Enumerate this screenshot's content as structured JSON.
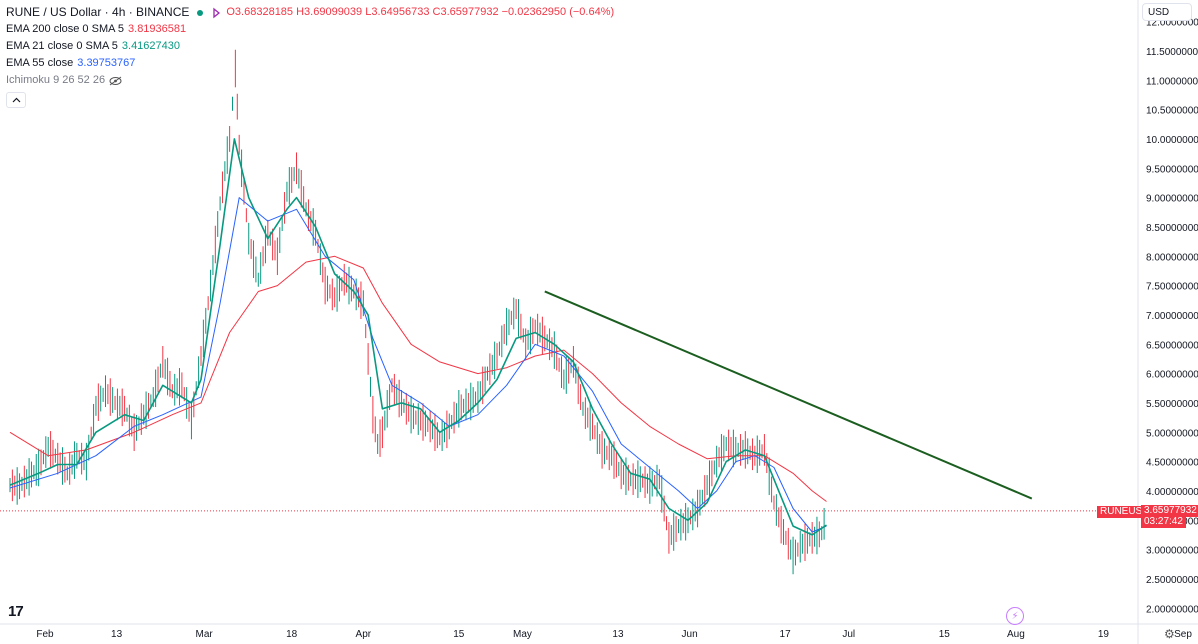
{
  "header": {
    "title": "RUNE / US Dollar · 4h · BINANCE",
    "ohlc": "O3.68328185 H3.69099039 L3.64956733 C3.65977932 −0.02362950 (−0.64%)",
    "indicators": [
      {
        "name": "EMA 200 close 0 SMA 5",
        "value": "3.81936581",
        "color": "#f23645"
      },
      {
        "name": "EMA 21 close 0 SMA 5",
        "value": "3.41627430",
        "color": "#089981"
      },
      {
        "name": "EMA 55 close",
        "value": "3.39753767",
        "color": "#2962ff"
      },
      {
        "name": "Ichimoku 9 26 52 26",
        "value": "",
        "color": "#787b86"
      }
    ]
  },
  "currency_select": "USD",
  "last_price": {
    "symbol": "RUNEUSD",
    "value": "3.65977932",
    "countdown": "03:27:42"
  },
  "colors": {
    "ema200": "#f23645",
    "ema21": "#089981",
    "ema55": "#2962ff",
    "trendline": "#1b5e20",
    "up": "#089981",
    "down": "#f23645"
  },
  "chart_data": {
    "type": "line",
    "y_range": [
      1.8,
      12.3
    ],
    "y_ticks": [
      "12.00000000",
      "11.50000000",
      "11.00000000",
      "10.50000000",
      "10.00000000",
      "9.50000000",
      "9.00000000",
      "8.50000000",
      "8.00000000",
      "7.50000000",
      "7.00000000",
      "6.50000000",
      "6.00000000",
      "5.50000000",
      "5.00000000",
      "4.50000000",
      "4.00000000",
      "3.50000000",
      "3.00000000",
      "2.50000000",
      "2.00000000"
    ],
    "x_ticks": [
      "Feb",
      "13",
      "Mar",
      "18",
      "Apr",
      "15",
      "May",
      "13",
      "Jun",
      "17",
      "Jul",
      "15",
      "Aug",
      "19",
      "Sep"
    ],
    "x_tick_pos": [
      0,
      9,
      20,
      31,
      40,
      52,
      60,
      72,
      81,
      93,
      101,
      113,
      122,
      133,
      143
    ],
    "price": [
      [
        0,
        4.1
      ],
      [
        1,
        4.08
      ],
      [
        3,
        4.4
      ],
      [
        4,
        4.75
      ],
      [
        5,
        4.55
      ],
      [
        6,
        4.3
      ],
      [
        7,
        4.6
      ],
      [
        8,
        4.5
      ],
      [
        9,
        5.45
      ],
      [
        10,
        5.7
      ],
      [
        11,
        5.5
      ],
      [
        12,
        5.4
      ],
      [
        13,
        5.0
      ],
      [
        15,
        5.6
      ],
      [
        16,
        6.2
      ],
      [
        17,
        5.7
      ],
      [
        18,
        5.8
      ],
      [
        19,
        5.2
      ],
      [
        20,
        6.3
      ],
      [
        21,
        7.5
      ],
      [
        22,
        8.9
      ],
      [
        23,
        10.0
      ],
      [
        23.6,
        11.2
      ],
      [
        24,
        9.9
      ],
      [
        25,
        8.3
      ],
      [
        26,
        7.6
      ],
      [
        27,
        8.4
      ],
      [
        28,
        8.0
      ],
      [
        29,
        9.1
      ],
      [
        30,
        9.5
      ],
      [
        31,
        8.8
      ],
      [
        32,
        8.4
      ],
      [
        33,
        7.5
      ],
      [
        34,
        7.3
      ],
      [
        35,
        7.6
      ],
      [
        36,
        7.4
      ],
      [
        37,
        7.2
      ],
      [
        38,
        5.3
      ],
      [
        38.5,
        4.8
      ],
      [
        39,
        5.0
      ],
      [
        40,
        5.8
      ],
      [
        41,
        5.5
      ],
      [
        42,
        5.3
      ],
      [
        43,
        5.2
      ],
      [
        44,
        5.1
      ],
      [
        45,
        4.9
      ],
      [
        46,
        5.1
      ],
      [
        47,
        5.4
      ],
      [
        48,
        5.5
      ],
      [
        49,
        5.6
      ],
      [
        50,
        6.0
      ],
      [
        51,
        6.3
      ],
      [
        52,
        6.8
      ],
      [
        53,
        7.1
      ],
      [
        54,
        6.5
      ],
      [
        55,
        6.8
      ],
      [
        56,
        6.6
      ],
      [
        57,
        6.4
      ],
      [
        58,
        5.9
      ],
      [
        59,
        6.2
      ],
      [
        60,
        5.4
      ],
      [
        61,
        5.1
      ],
      [
        62,
        4.7
      ],
      [
        63,
        4.6
      ],
      [
        64,
        4.3
      ],
      [
        65,
        4.2
      ],
      [
        66,
        4.2
      ],
      [
        67,
        4.1
      ],
      [
        68,
        4.2
      ],
      [
        69,
        3.2
      ],
      [
        70,
        3.4
      ],
      [
        71,
        3.5
      ],
      [
        72,
        3.7
      ],
      [
        73,
        4.1
      ],
      [
        74,
        4.5
      ],
      [
        75,
        4.8
      ],
      [
        76,
        4.7
      ],
      [
        77,
        4.7
      ],
      [
        78,
        4.6
      ],
      [
        79,
        4.7
      ],
      [
        80,
        3.8
      ],
      [
        81,
        3.3
      ],
      [
        82,
        2.9
      ],
      [
        83,
        3.1
      ],
      [
        84,
        3.2
      ],
      [
        85,
        3.28
      ],
      [
        85.5,
        3.6
      ]
    ],
    "ema21": [
      [
        0,
        4.1
      ],
      [
        3,
        4.3
      ],
      [
        5,
        4.45
      ],
      [
        7,
        4.45
      ],
      [
        9,
        5.0
      ],
      [
        12,
        5.3
      ],
      [
        14,
        5.2
      ],
      [
        16,
        5.8
      ],
      [
        19,
        5.5
      ],
      [
        20,
        5.9
      ],
      [
        22,
        8.2
      ],
      [
        23.5,
        10.0
      ],
      [
        25,
        9.0
      ],
      [
        27,
        8.3
      ],
      [
        29,
        8.8
      ],
      [
        30,
        9.0
      ],
      [
        32,
        8.5
      ],
      [
        34,
        7.7
      ],
      [
        36,
        7.4
      ],
      [
        37.5,
        7.0
      ],
      [
        39,
        5.4
      ],
      [
        41,
        5.5
      ],
      [
        43,
        5.4
      ],
      [
        45,
        5.0
      ],
      [
        47,
        5.2
      ],
      [
        49,
        5.5
      ],
      [
        51,
        5.9
      ],
      [
        53,
        6.6
      ],
      [
        55,
        6.7
      ],
      [
        57,
        6.5
      ],
      [
        59,
        6.2
      ],
      [
        61,
        5.4
      ],
      [
        63,
        4.8
      ],
      [
        65,
        4.3
      ],
      [
        67,
        4.2
      ],
      [
        69,
        3.7
      ],
      [
        71,
        3.5
      ],
      [
        73,
        3.8
      ],
      [
        75,
        4.5
      ],
      [
        77,
        4.7
      ],
      [
        79,
        4.6
      ],
      [
        80.5,
        4.0
      ],
      [
        82,
        3.4
      ],
      [
        84,
        3.25
      ],
      [
        85.5,
        3.42
      ]
    ],
    "ema55": [
      [
        0,
        4.05
      ],
      [
        5,
        4.3
      ],
      [
        9,
        4.6
      ],
      [
        13,
        5.1
      ],
      [
        16,
        5.3
      ],
      [
        20,
        5.6
      ],
      [
        22,
        7.2
      ],
      [
        24,
        9.0
      ],
      [
        27,
        8.6
      ],
      [
        30,
        8.8
      ],
      [
        33,
        8.0
      ],
      [
        36,
        7.6
      ],
      [
        38,
        6.6
      ],
      [
        40,
        5.8
      ],
      [
        43,
        5.5
      ],
      [
        46,
        5.1
      ],
      [
        49,
        5.3
      ],
      [
        52,
        5.8
      ],
      [
        55,
        6.5
      ],
      [
        58,
        6.3
      ],
      [
        61,
        5.7
      ],
      [
        64,
        4.8
      ],
      [
        67,
        4.4
      ],
      [
        70,
        4.0
      ],
      [
        72,
        3.7
      ],
      [
        74,
        4.0
      ],
      [
        76,
        4.5
      ],
      [
        78,
        4.6
      ],
      [
        80,
        4.4
      ],
      [
        82,
        3.7
      ],
      [
        84,
        3.3
      ],
      [
        85.5,
        3.4
      ]
    ],
    "ema200": [
      [
        0,
        5.0
      ],
      [
        4,
        4.6
      ],
      [
        8,
        4.7
      ],
      [
        13,
        5.0
      ],
      [
        17,
        5.3
      ],
      [
        20,
        5.5
      ],
      [
        23,
        6.7
      ],
      [
        26,
        7.4
      ],
      [
        28,
        7.5
      ],
      [
        31,
        7.9
      ],
      [
        34,
        8.0
      ],
      [
        37,
        7.8
      ],
      [
        39,
        7.2
      ],
      [
        42,
        6.5
      ],
      [
        45,
        6.2
      ],
      [
        49,
        6.0
      ],
      [
        52,
        6.1
      ],
      [
        55,
        6.3
      ],
      [
        58,
        6.4
      ],
      [
        61,
        6.0
      ],
      [
        64,
        5.5
      ],
      [
        67,
        5.1
      ],
      [
        70,
        4.8
      ],
      [
        73,
        4.55
      ],
      [
        76,
        4.6
      ],
      [
        79,
        4.6
      ],
      [
        82,
        4.3
      ],
      [
        84,
        4.0
      ],
      [
        85.5,
        3.82
      ]
    ],
    "trendline": [
      [
        56,
        7.4
      ],
      [
        107,
        3.87
      ]
    ],
    "last_price_line": 3.66
  }
}
